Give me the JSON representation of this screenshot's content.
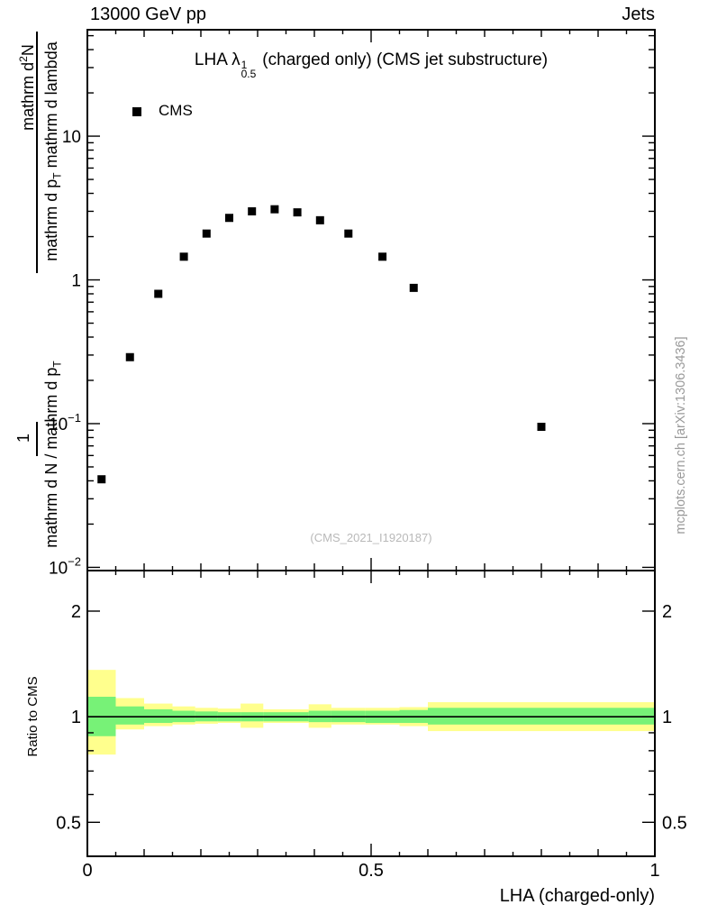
{
  "header": {
    "left": "13000 GeV pp",
    "right": "Jets"
  },
  "title": {
    "a": "LHA ",
    "lambda": "λ",
    "sup": "1",
    "sub": "0.5",
    "b": "(charged only) (CMS jet substructure)"
  },
  "legend": {
    "label": "CMS"
  },
  "watermark": "(CMS_2021_I1920187)",
  "credit": "mcplots.cern.ch [arXiv:1306.3436]",
  "ylabel": {
    "f1_num_a": "mathrm d",
    "f1_num_sup": "2",
    "f1_num_b": "N",
    "f1_den_a": "mathrm d p",
    "f1_den_sub": "T",
    "f1_den_b": " mathrm d lambda",
    "f2_num": "1",
    "f2_den_a": "mathrm d N / mathrm d p",
    "f2_den_sub": "T"
  },
  "ratio_ylabel": "Ratio to CMS",
  "xlabel": "LHA (charged-only)",
  "chart_data": {
    "type": "scatter",
    "title": "LHA lambda^1_0.5 (charged only) (CMS jet substructure)",
    "xlabel": "LHA (charged-only)",
    "ylabel": "1/(mathrm dN/mathrm dp_T) mathrm d^2N/(mathrm dp_T mathrm dlambda)",
    "xlim": [
      0,
      1
    ],
    "xticks": [
      {
        "v": 0,
        "label": "0"
      },
      {
        "v": 0.5,
        "label": "0.5"
      },
      {
        "v": 1,
        "label": "1"
      }
    ],
    "main": {
      "yscale": "log",
      "ylim": [
        0.0095,
        55
      ],
      "yticks": [
        {
          "v": 10,
          "base": "10",
          "sup": ""
        },
        {
          "v": 1,
          "base": "1",
          "sup": ""
        },
        {
          "v": 0.1,
          "base": "10",
          "sup": "−1"
        },
        {
          "v": 0.01,
          "base": "10",
          "sup": "−2"
        }
      ],
      "series": [
        {
          "name": "CMS",
          "marker": "filled-square",
          "color": "#000000",
          "x": [
            0.025,
            0.075,
            0.125,
            0.17,
            0.21,
            0.25,
            0.29,
            0.33,
            0.37,
            0.41,
            0.46,
            0.52,
            0.575,
            0.8
          ],
          "y": [
            0.041,
            0.29,
            0.8,
            1.45,
            2.1,
            2.7,
            3.0,
            3.1,
            2.95,
            2.6,
            2.1,
            1.45,
            0.88,
            0.095
          ]
        }
      ]
    },
    "ratio": {
      "yscale": "log",
      "ylim": [
        0.4,
        2.61
      ],
      "reference": 1,
      "yticks": [
        {
          "v": 2,
          "label": "2"
        },
        {
          "v": 1,
          "label": "1"
        },
        {
          "v": 0.5,
          "label": "0.5"
        }
      ],
      "band_colors": {
        "outer": "#ffff8d",
        "inner": "#77f277"
      },
      "bands": [
        {
          "x0": 0.0,
          "x1": 0.05,
          "outer": [
            0.78,
            1.36
          ],
          "inner": [
            0.88,
            1.14
          ]
        },
        {
          "x0": 0.05,
          "x1": 0.1,
          "outer": [
            0.92,
            1.13
          ],
          "inner": [
            0.95,
            1.07
          ]
        },
        {
          "x0": 0.1,
          "x1": 0.15,
          "outer": [
            0.94,
            1.09
          ],
          "inner": [
            0.96,
            1.05
          ]
        },
        {
          "x0": 0.15,
          "x1": 0.19,
          "outer": [
            0.95,
            1.07
          ],
          "inner": [
            0.965,
            1.04
          ]
        },
        {
          "x0": 0.19,
          "x1": 0.23,
          "outer": [
            0.955,
            1.06
          ],
          "inner": [
            0.97,
            1.035
          ]
        },
        {
          "x0": 0.23,
          "x1": 0.27,
          "outer": [
            0.96,
            1.055
          ],
          "inner": [
            0.97,
            1.03
          ]
        },
        {
          "x0": 0.27,
          "x1": 0.31,
          "outer": [
            0.93,
            1.09
          ],
          "inner": [
            0.97,
            1.03
          ]
        },
        {
          "x0": 0.31,
          "x1": 0.35,
          "outer": [
            0.96,
            1.05
          ],
          "inner": [
            0.97,
            1.03
          ]
        },
        {
          "x0": 0.35,
          "x1": 0.39,
          "outer": [
            0.96,
            1.05
          ],
          "inner": [
            0.97,
            1.03
          ]
        },
        {
          "x0": 0.39,
          "x1": 0.43,
          "outer": [
            0.93,
            1.085
          ],
          "inner": [
            0.965,
            1.04
          ]
        },
        {
          "x0": 0.43,
          "x1": 0.49,
          "outer": [
            0.95,
            1.06
          ],
          "inner": [
            0.965,
            1.04
          ]
        },
        {
          "x0": 0.49,
          "x1": 0.55,
          "outer": [
            0.95,
            1.06
          ],
          "inner": [
            0.96,
            1.04
          ]
        },
        {
          "x0": 0.55,
          "x1": 0.6,
          "outer": [
            0.94,
            1.065
          ],
          "inner": [
            0.96,
            1.045
          ]
        },
        {
          "x0": 0.6,
          "x1": 1.0,
          "outer": [
            0.91,
            1.1
          ],
          "inner": [
            0.95,
            1.06
          ]
        }
      ]
    }
  }
}
